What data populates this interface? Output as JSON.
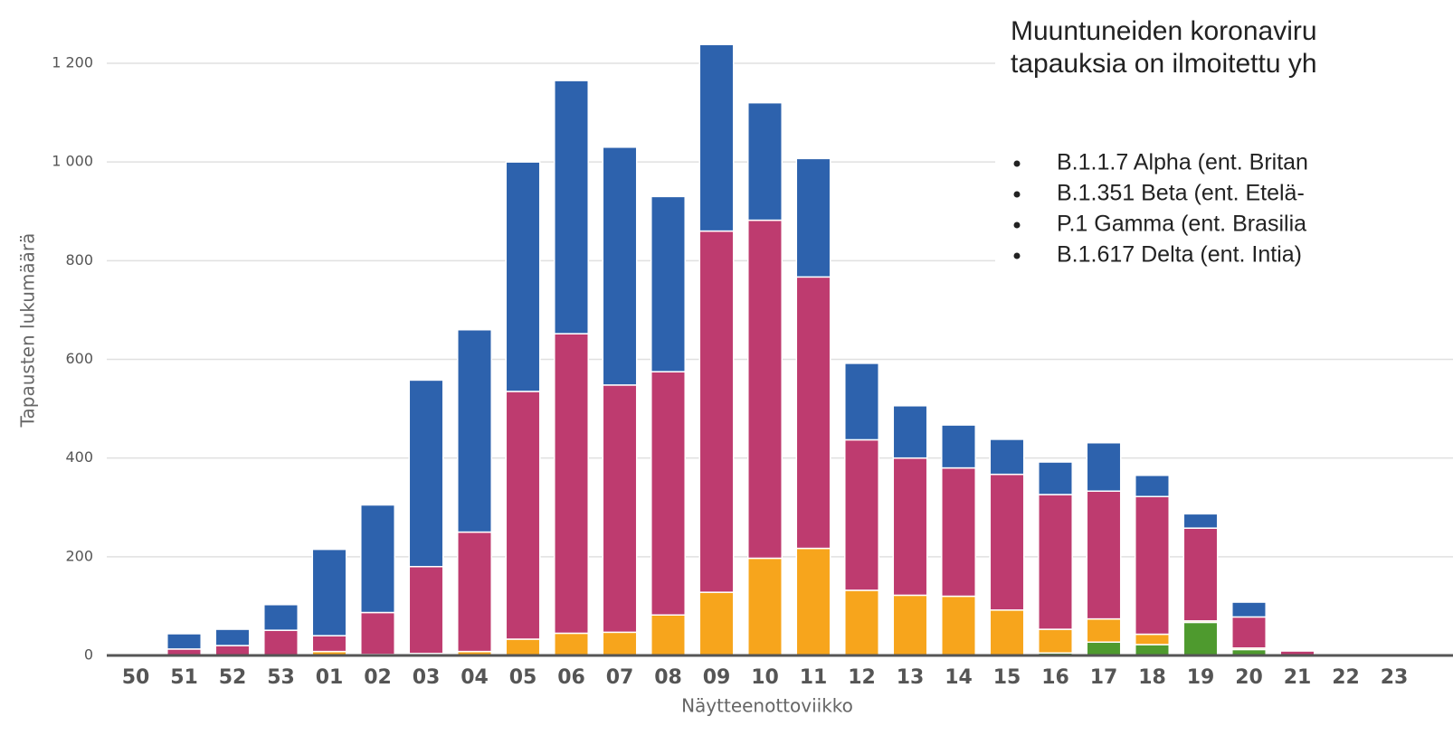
{
  "chart_data": {
    "type": "bar",
    "stacked": true,
    "y_label": "Tapausten lukumäärä",
    "x_label": "Näytteenottoviikko",
    "annotation_lines": [
      "Muuntuneiden koronaviru",
      "tapauksia on ilmoitettu yh"
    ],
    "legend_items": [
      "B.1.1.7 Alpha (ent. Britan",
      "B.1.351 Beta (ent. Etelä-",
      "P.1 Gamma (ent. Brasilia",
      "B.1.617 Delta (ent. Intia)"
    ],
    "categories": [
      "50",
      "51",
      "52",
      "53",
      "01",
      "02",
      "03",
      "04",
      "05",
      "06",
      "07",
      "08",
      "09",
      "10",
      "11",
      "12",
      "13",
      "14",
      "15",
      "16",
      "17",
      "18",
      "19",
      "20",
      "21",
      "22",
      "23"
    ],
    "series": [
      {
        "color": "#4e9a2e",
        "values": [
          0,
          0,
          0,
          0,
          0,
          0,
          0,
          0,
          0,
          0,
          0,
          0,
          0,
          0,
          0,
          0,
          0,
          0,
          0,
          5,
          27,
          22,
          67,
          12,
          0,
          0,
          0
        ]
      },
      {
        "color": "#f7a51c",
        "values": [
          0,
          0,
          0,
          0,
          8,
          2,
          4,
          8,
          33,
          45,
          47,
          82,
          128,
          197,
          217,
          132,
          122,
          120,
          92,
          48,
          47,
          21,
          3,
          3,
          0,
          0,
          0
        ]
      },
      {
        "color": "#be3b6f",
        "values": [
          0,
          13,
          20,
          51,
          32,
          85,
          176,
          242,
          502,
          607,
          501,
          493,
          732,
          685,
          550,
          305,
          278,
          260,
          275,
          273,
          259,
          279,
          188,
          63,
          9,
          0,
          0
        ]
      },
      {
        "color": "#2d62ad",
        "values": [
          0,
          31,
          33,
          52,
          175,
          218,
          378,
          410,
          465,
          513,
          482,
          355,
          378,
          238,
          240,
          155,
          106,
          87,
          71,
          66,
          98,
          43,
          29,
          30,
          0,
          0,
          0
        ]
      }
    ],
    "ylim": [
      0,
      1320
    ],
    "yticks": [
      0,
      200,
      400,
      600,
      800,
      {
        "value": 1000,
        "label": "1 000"
      },
      {
        "value": 1200,
        "label": "1 200"
      }
    ],
    "grid": true
  }
}
